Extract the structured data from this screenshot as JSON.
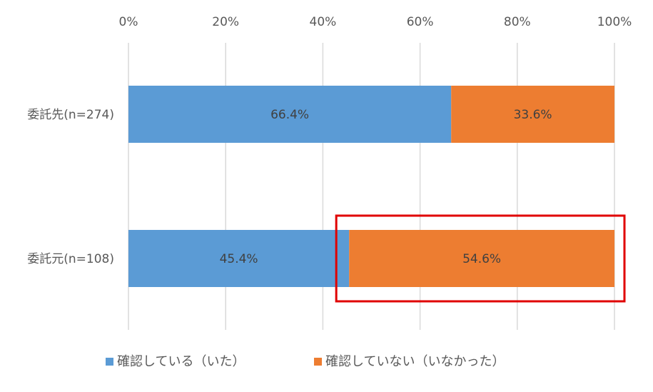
{
  "chart_data": {
    "type": "bar",
    "orientation": "horizontal",
    "stacked": true,
    "categories": [
      "委託先(n=274)",
      "委託元(n=108)"
    ],
    "series": [
      {
        "name": "確認している（いた）",
        "values": [
          66.4,
          45.4
        ],
        "labels": [
          "66.4%",
          "45.4%"
        ],
        "color": "#5B9BD5"
      },
      {
        "name": "確認していない（いなかった）",
        "values": [
          33.6,
          54.6
        ],
        "labels": [
          "33.6%",
          "54.6%"
        ],
        "color": "#ED7D31"
      }
    ],
    "xlim": [
      0,
      100
    ],
    "xticks": [
      "0%",
      "20%",
      "40%",
      "60%",
      "80%",
      "100%"
    ],
    "axis_position": "top",
    "grid": true,
    "legend_position": "bottom",
    "highlight": {
      "category": "委託元(n=108)",
      "series": "確認していない（いなかった）",
      "color": "#E00000"
    }
  }
}
